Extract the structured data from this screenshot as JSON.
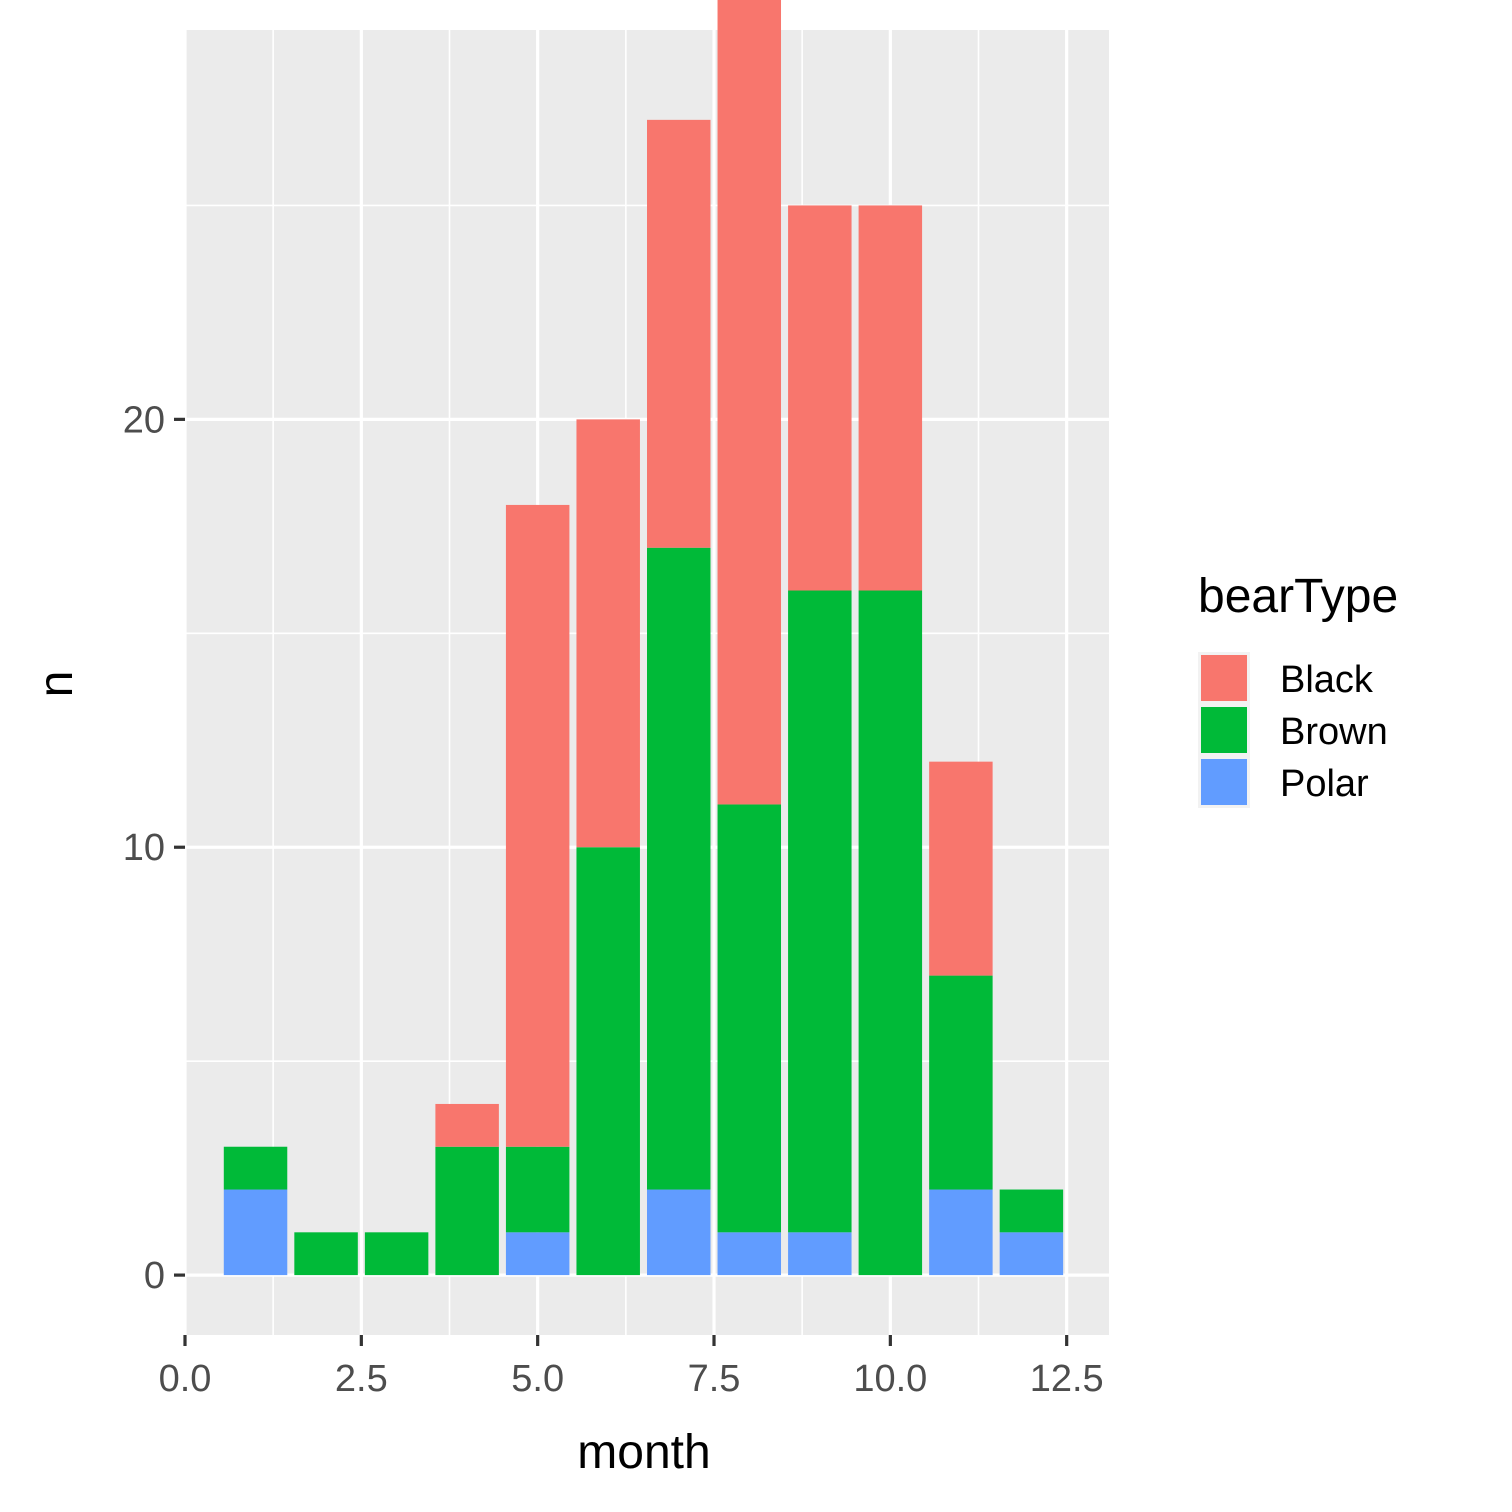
{
  "chart_data": {
    "type": "bar",
    "stacked": true,
    "xlabel": "month",
    "ylabel": "n",
    "x": [
      1,
      2,
      3,
      4,
      5,
      6,
      7,
      8,
      9,
      10,
      11,
      12
    ],
    "series": [
      {
        "name": "Black",
        "color": "#F8766D",
        "values": [
          0,
          0,
          0,
          1,
          15,
          10,
          10,
          20,
          9,
          9,
          5,
          0
        ]
      },
      {
        "name": "Brown",
        "color": "#00BA38",
        "values": [
          1,
          1,
          1,
          3,
          2,
          10,
          15,
          10,
          15,
          16,
          5,
          1
        ]
      },
      {
        "name": "Polar",
        "color": "#619CFF",
        "values": [
          2,
          0,
          0,
          0,
          1,
          0,
          2,
          1,
          1,
          0,
          2,
          1
        ]
      }
    ],
    "stack_order_bottom_to_top": [
      "Polar",
      "Brown",
      "Black"
    ],
    "xlim": [
      0,
      13.1
    ],
    "ylim": [
      -1.4,
      29.1
    ],
    "xticks": [
      0,
      2.5,
      5,
      7.5,
      10,
      12.5
    ],
    "xtick_labels": [
      "0.0",
      "2.5",
      "5.0",
      "7.5",
      "10.0",
      "12.5"
    ],
    "yticks": [
      0,
      10,
      20
    ],
    "ytick_labels": [
      "0",
      "10",
      "20"
    ],
    "grid": true,
    "panel_background": "#EBEBEB",
    "legend": {
      "title": "bearType",
      "position": "right",
      "entries": [
        "Black",
        "Brown",
        "Polar"
      ]
    }
  }
}
